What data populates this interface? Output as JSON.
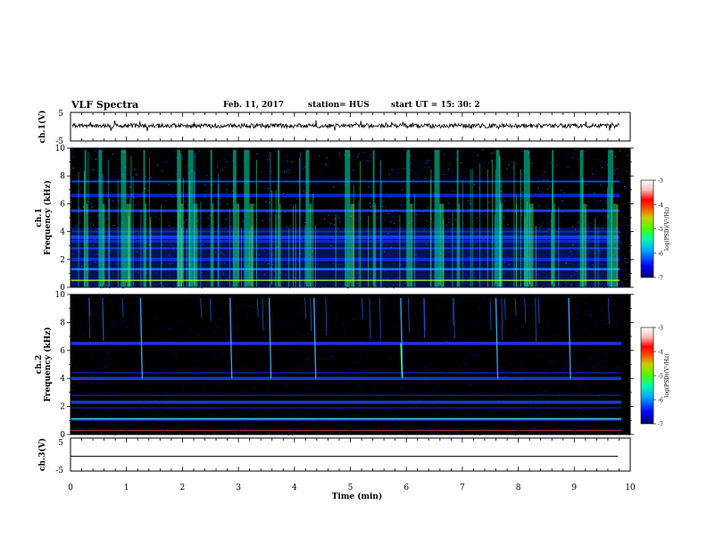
{
  "header": {
    "title": "VLF Spectra",
    "date": "Feb. 11, 2017",
    "station": "station= HUS",
    "start": "start  UT =   15: 30: 2"
  },
  "colors": {
    "colorbar": [
      "#000080",
      "#0000ff",
      "#00aaff",
      "#00ffaa",
      "#44ff00",
      "#cccc00",
      "#ff4400",
      "#ff0000",
      "#ffbbbb",
      "#ffffff"
    ],
    "spectrogram_background": "#000000",
    "waveform": "#000000"
  },
  "chart_data": [
    {
      "type": "line",
      "panel": "ch1-waveform",
      "ylabel": "ch.1(V)",
      "ylim": [
        -5,
        5
      ],
      "yticks": [
        "5",
        "-5"
      ],
      "xlim": [
        0,
        10
      ],
      "description_values": {
        "mean_level": 0,
        "amplitude": 0.4
      }
    },
    {
      "type": "heatmap",
      "panel": "ch1-spectrogram",
      "ylabel": "ch.1\nFrequency (kHz)",
      "ylim": [
        0,
        10
      ],
      "yticks": [
        "0",
        "2",
        "4",
        "6",
        "8",
        "10"
      ],
      "xlim": [
        0,
        10
      ],
      "colorbar": {
        "label": "log(PSD)(V²/Hz)",
        "range": [
          -7,
          -3
        ],
        "ticks": [
          "-3",
          "-4",
          "-5",
          "-6",
          "-7"
        ]
      },
      "intense_bursts_min": [
        0.25,
        0.5,
        0.9,
        1.3,
        1.9,
        2.1,
        2.5,
        2.9,
        3.1,
        3.7,
        4.2,
        4.9,
        5.4,
        6.0,
        6.5,
        6.9,
        7.6,
        8.1,
        8.6,
        9.1,
        9.6
      ],
      "bands_khz": [
        0.5,
        1.3,
        2.0,
        2.8,
        3.3,
        3.6,
        4.0,
        5.5,
        6.6,
        7.6
      ]
    },
    {
      "type": "heatmap",
      "panel": "ch2-spectrogram",
      "ylabel": "ch.2\nFrequency (kHz)",
      "ylim": [
        0,
        10
      ],
      "yticks": [
        "0",
        "2",
        "4",
        "6",
        "8",
        "10"
      ],
      "xlim": [
        0,
        10
      ],
      "colorbar": {
        "label": "log(PSD)(V²/Hz)",
        "range": [
          -7,
          -3
        ],
        "ticks": [
          "-3",
          "-4",
          "-5",
          "-6",
          "-7"
        ]
      },
      "whistlers_min": [
        1.25,
        2.85,
        3.55,
        4.35,
        5.9,
        7.6,
        8.9
      ],
      "bands_khz": [
        0.3,
        1.1,
        1.9,
        2.3,
        2.8,
        4.0,
        4.4,
        6.5
      ]
    },
    {
      "type": "line",
      "panel": "ch3-waveform",
      "ylabel": "ch.3(V)",
      "ylim": [
        -5,
        5
      ],
      "yticks": [
        "5",
        "-5"
      ],
      "xlim": [
        0,
        10
      ],
      "xlabel": "Time (min)",
      "xticks": [
        "0",
        "1",
        "2",
        "3",
        "4",
        "5",
        "6",
        "7",
        "8",
        "9",
        "10"
      ],
      "description_values": {
        "mean_level": 0,
        "amplitude": 0
      }
    }
  ]
}
